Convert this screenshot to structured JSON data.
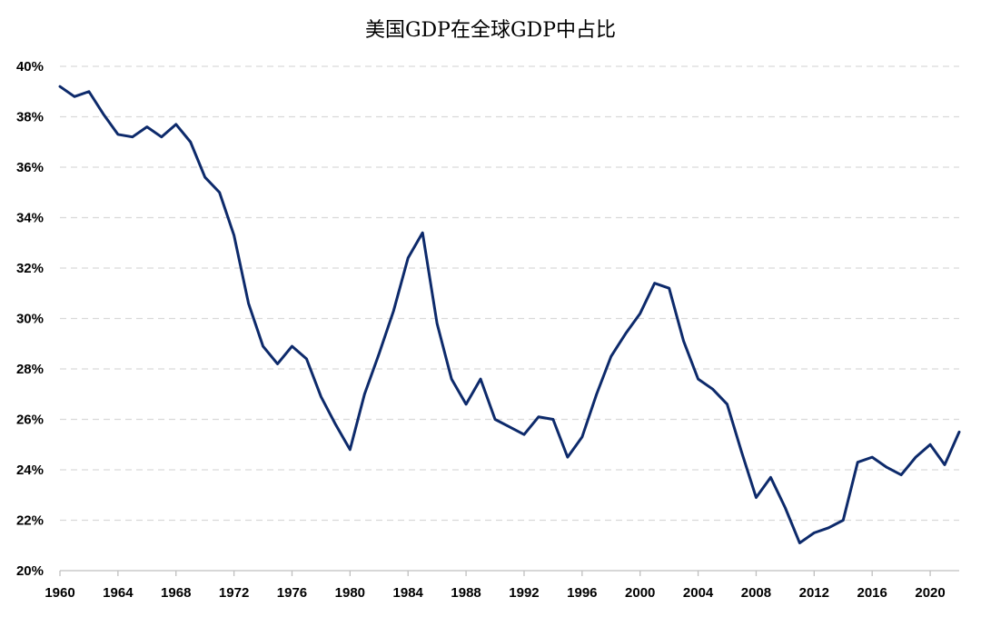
{
  "chart_data": {
    "type": "line",
    "title": "美国GDP在全球GDP中占比",
    "xlabel": "",
    "ylabel": "",
    "x_range": [
      1960,
      2022
    ],
    "x_tick_values": [
      1960,
      1964,
      1968,
      1972,
      1976,
      1980,
      1984,
      1988,
      1992,
      1996,
      2000,
      2004,
      2008,
      2012,
      2016,
      2020
    ],
    "x_ticks": [
      "1960",
      "1964",
      "1968",
      "1972",
      "1976",
      "1980",
      "1984",
      "1988",
      "1992",
      "1996",
      "2000",
      "2004",
      "2008",
      "2012",
      "2016",
      "2020"
    ],
    "ylim": [
      20,
      40
    ],
    "y_tick_values": [
      20,
      22,
      24,
      26,
      28,
      30,
      32,
      34,
      36,
      38,
      40
    ],
    "y_ticks": [
      "20%",
      "22%",
      "24%",
      "26%",
      "28%",
      "30%",
      "32%",
      "34%",
      "36%",
      "38%",
      "40%"
    ],
    "grid": true,
    "legend": "none",
    "series": [
      {
        "color": "#0d2a6b",
        "x": [
          1960,
          1961,
          1962,
          1963,
          1964,
          1965,
          1966,
          1967,
          1968,
          1969,
          1970,
          1971,
          1972,
          1973,
          1974,
          1975,
          1976,
          1977,
          1978,
          1979,
          1980,
          1981,
          1982,
          1983,
          1984,
          1985,
          1986,
          1987,
          1988,
          1989,
          1990,
          1991,
          1992,
          1993,
          1994,
          1995,
          1996,
          1997,
          1998,
          1999,
          2000,
          2001,
          2002,
          2003,
          2004,
          2005,
          2006,
          2007,
          2008,
          2009,
          2010,
          2011,
          2012,
          2013,
          2014,
          2015,
          2016,
          2017,
          2018,
          2019,
          2020,
          2021,
          2022
        ],
        "values": [
          39.2,
          38.8,
          39.0,
          38.1,
          37.3,
          37.2,
          37.6,
          37.2,
          37.7,
          37.0,
          35.6,
          35.0,
          33.3,
          30.6,
          28.9,
          28.2,
          28.9,
          28.4,
          26.9,
          25.8,
          24.8,
          27.0,
          28.6,
          30.3,
          32.4,
          33.4,
          29.8,
          27.6,
          26.6,
          27.6,
          26.0,
          25.7,
          25.4,
          26.1,
          26.0,
          24.5,
          25.3,
          27.0,
          28.5,
          29.4,
          30.2,
          31.4,
          31.2,
          29.1,
          27.6,
          27.2,
          26.6,
          24.7,
          22.9,
          23.7,
          22.5,
          21.1,
          21.5,
          21.7,
          22.0,
          24.3,
          24.5,
          24.1,
          23.8,
          24.5,
          25.0,
          24.2,
          25.5
        ]
      }
    ]
  }
}
